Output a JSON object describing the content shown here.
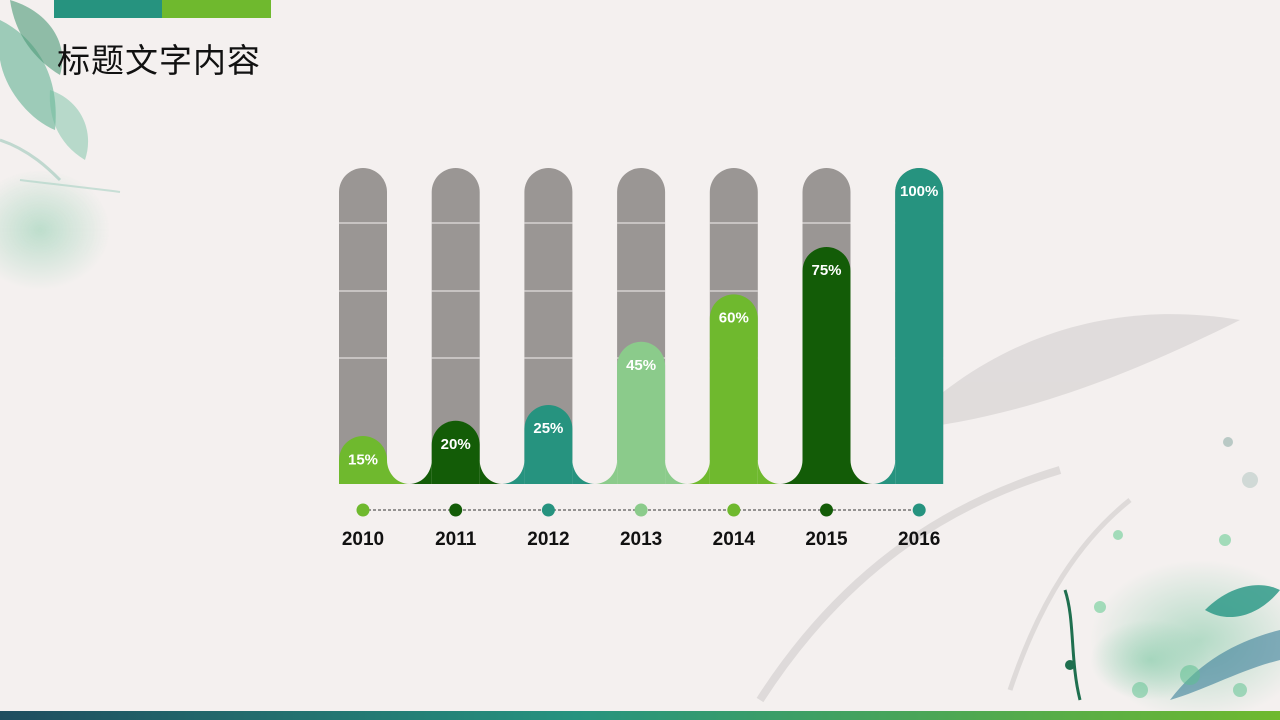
{
  "slide": {
    "title": "标题文字内容"
  },
  "theme": {
    "bg": "#f4f0ef",
    "teal": "#26937f",
    "lime": "#6fb92e",
    "dark_green": "#135c07",
    "light_green": "#8bcb8b",
    "track_gray": "#9a9694",
    "accent_left": "#26937f",
    "accent_right": "#6fb92e",
    "bottom_strip_from": "#1f4d5f",
    "bottom_strip_to": "#6fb92e"
  },
  "chart_data": {
    "type": "bar",
    "categories": [
      "2010",
      "2011",
      "2012",
      "2013",
      "2014",
      "2015",
      "2016"
    ],
    "values": [
      15,
      20,
      25,
      45,
      60,
      75,
      100
    ],
    "value_labels": [
      "15%",
      "20%",
      "25%",
      "45%",
      "60%",
      "75%",
      "100%"
    ],
    "ylim": [
      0,
      100
    ],
    "bar_colors": [
      "#6fb92e",
      "#135c07",
      "#26937f",
      "#8bcb8b",
      "#6fb92e",
      "#135c07",
      "#26937f"
    ],
    "title": "",
    "xlabel": "",
    "ylabel": "",
    "grid": false,
    "legend": "none"
  }
}
